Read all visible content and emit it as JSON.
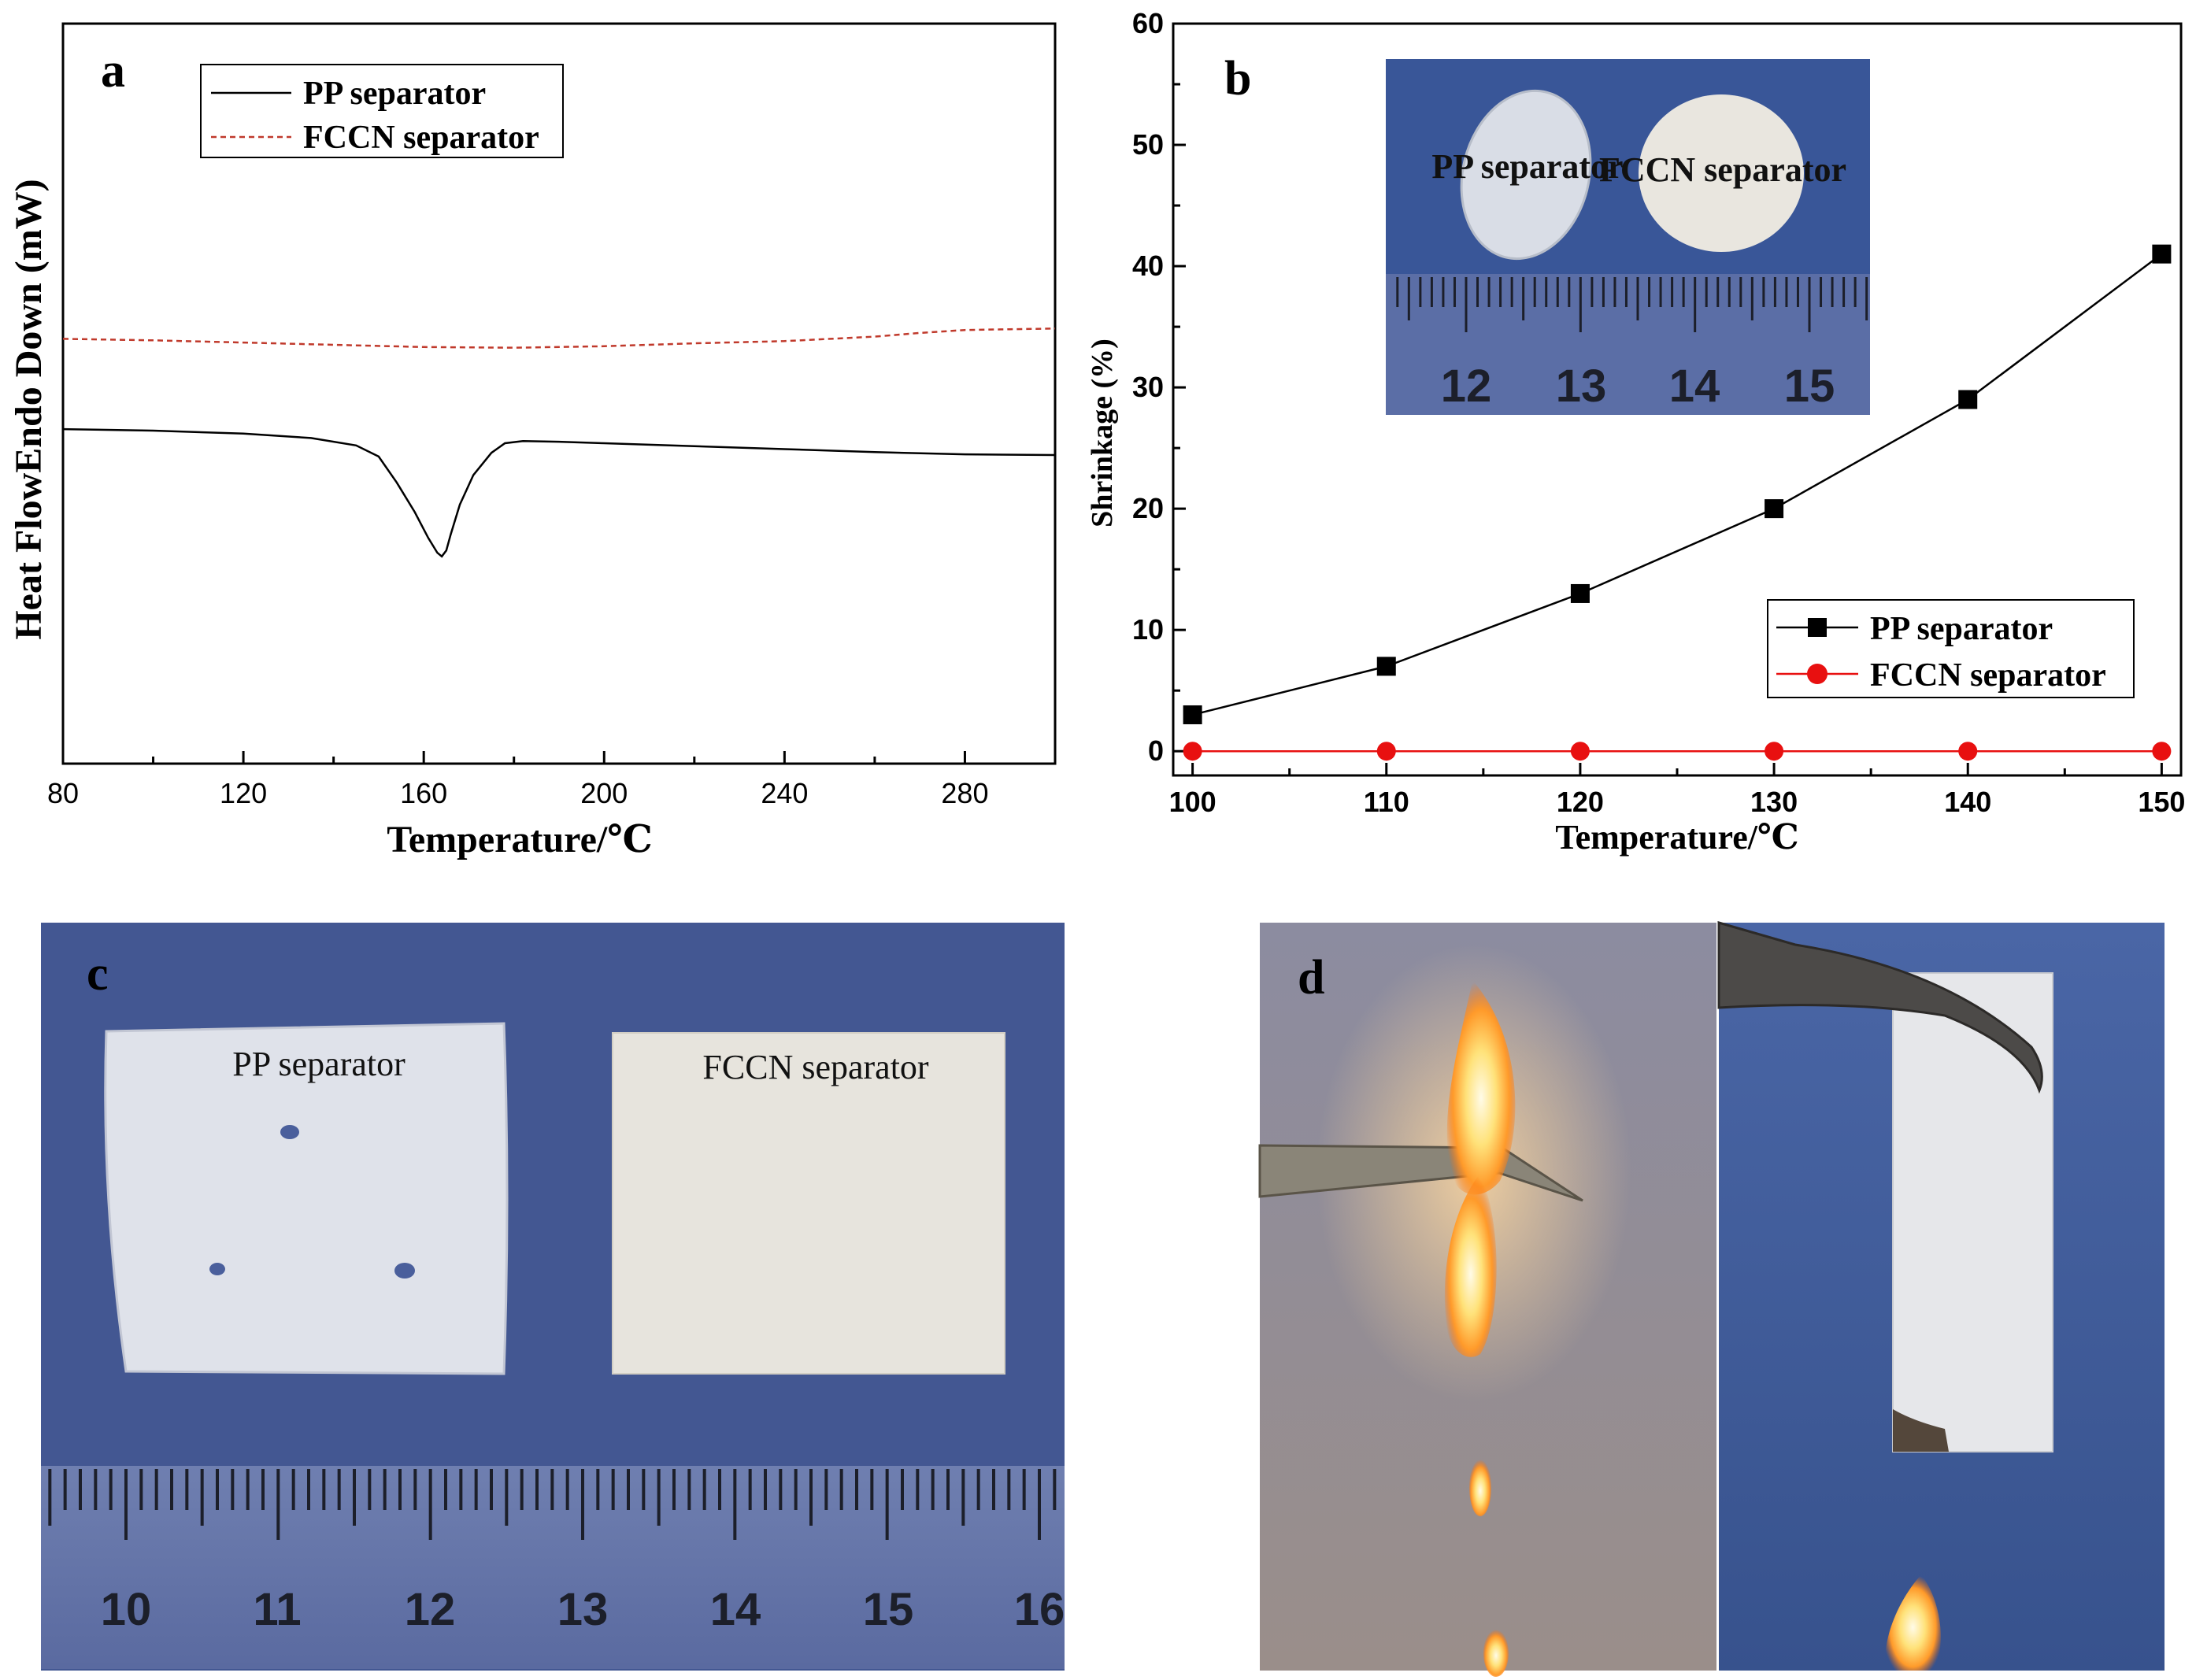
{
  "panels": {
    "a": "a",
    "b": "b",
    "c": "c",
    "d": "d"
  },
  "chart_data": [
    {
      "panel": "a",
      "type": "line",
      "xlabel": "Temperature/℃",
      "ylabel": "Heat FlowEndo Down (mW)",
      "xlim": [
        80,
        300
      ],
      "xticks": [
        80,
        120,
        160,
        200,
        240,
        280
      ],
      "y_tick_labels": false,
      "legend_position": "top-left",
      "series": [
        {
          "name": "PP separator",
          "color": "#000000",
          "style": "solid",
          "x": [
            80,
            100,
            120,
            135,
            145,
            150,
            154,
            158,
            161,
            163,
            164,
            165,
            166,
            168,
            171,
            175,
            178,
            182,
            190,
            200,
            220,
            240,
            260,
            280,
            300
          ],
          "y": [
            45.2,
            45.0,
            44.6,
            44.0,
            43.0,
            41.5,
            38.0,
            34.0,
            30.5,
            28.5,
            28.0,
            28.8,
            31.0,
            35.0,
            39.0,
            42.0,
            43.3,
            43.6,
            43.5,
            43.3,
            42.9,
            42.5,
            42.1,
            41.8,
            41.7
          ]
        },
        {
          "name": "FCCN separator",
          "color": "#c0392b",
          "style": "dashed",
          "x": [
            80,
            100,
            120,
            140,
            160,
            180,
            200,
            220,
            240,
            260,
            270,
            280,
            290,
            300
          ],
          "y": [
            57.4,
            57.2,
            56.9,
            56.6,
            56.3,
            56.2,
            56.4,
            56.8,
            57.1,
            57.7,
            58.2,
            58.6,
            58.7,
            58.8
          ]
        }
      ],
      "ylim": [
        0,
        100
      ]
    },
    {
      "panel": "b",
      "type": "line",
      "xlabel": "Temperature/℃",
      "ylabel": "Shrinkage (%)",
      "xlim": [
        99,
        151
      ],
      "ylim": [
        -2,
        60
      ],
      "xticks": [
        100,
        110,
        120,
        130,
        140,
        150
      ],
      "yticks": [
        0,
        10,
        20,
        30,
        40,
        50,
        60
      ],
      "legend_position": "bottom-right",
      "series": [
        {
          "name": "PP separator",
          "color": "#000000",
          "marker": "square",
          "x": [
            100,
            110,
            120,
            130,
            140,
            150
          ],
          "y": [
            3,
            7,
            13,
            20,
            29,
            41
          ]
        },
        {
          "name": "FCCN separator",
          "color": "#e81010",
          "marker": "circle",
          "x": [
            100,
            110,
            120,
            130,
            140,
            150
          ],
          "y": [
            0,
            0,
            0,
            0,
            0,
            0
          ]
        }
      ]
    }
  ],
  "inset_b": {
    "label_pp": "PP separator",
    "label_fccn": "FCCN separator",
    "ruler_numbers": [
      "12",
      "13",
      "14",
      "15"
    ],
    "background": "#3d5a9e"
  },
  "photo_c": {
    "label_pp": "PP separator",
    "label_fccn": "FCCN separator",
    "ruler_numbers": [
      "10",
      "11",
      "12",
      "13",
      "14",
      "15",
      "16"
    ],
    "background": "#4a5f9c"
  },
  "photo_d": {
    "left_background": "#8f8c9e",
    "right_background": "#3f5c98"
  }
}
